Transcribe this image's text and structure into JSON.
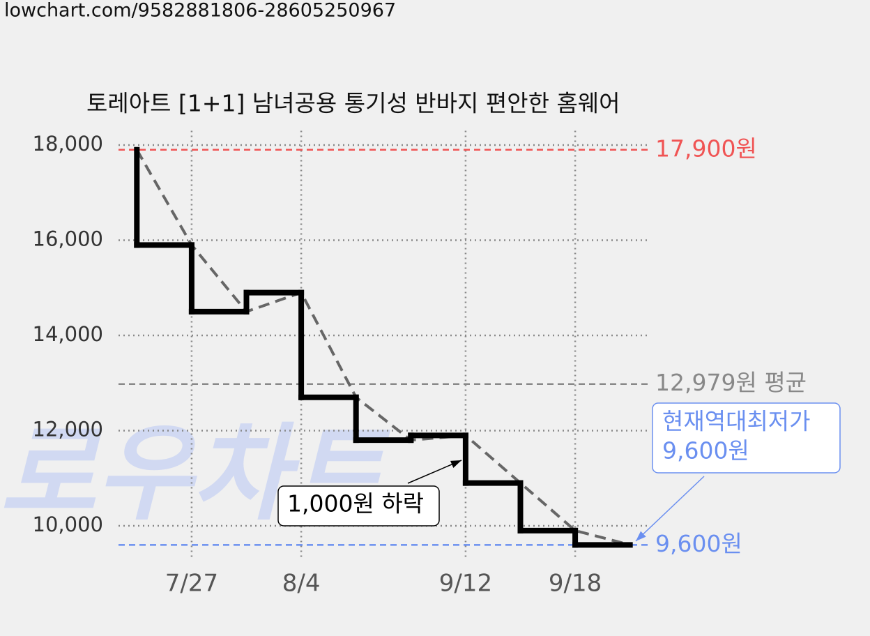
{
  "url": "lowchart.com/9582881806-28605250967",
  "chart_data": {
    "type": "step",
    "title": "토레아트 [1+1] 남녀공용 통기성 반바지 편안한 홈웨어",
    "categories": [
      null,
      "7/27",
      null,
      "8/4",
      null,
      null,
      "9/12",
      null,
      "9/18",
      null
    ],
    "values": [
      17900,
      15900,
      14500,
      14900,
      12700,
      11800,
      11900,
      10900,
      9900,
      9600
    ],
    "color": "#000000",
    "trend_color": "#666666",
    "ylim": [
      9300,
      18300
    ],
    "yticks": [
      {
        "value": 10000,
        "label": "10,000"
      },
      {
        "value": 12000,
        "label": "12,000"
      },
      {
        "value": 14000,
        "label": "14,000"
      },
      {
        "value": 16000,
        "label": "16,000"
      },
      {
        "value": 18000,
        "label": "18,000"
      }
    ],
    "grid": true,
    "reference_lines": [
      {
        "value": 17900,
        "label": "17,900원",
        "color": "#f05454"
      },
      {
        "value": 12979,
        "label": "12,979원 평균",
        "color": "#888888"
      },
      {
        "value": 9600,
        "label": "9,600원",
        "color": "#6a8ff0"
      }
    ],
    "annotations": [
      {
        "lines": [
          "현재역대최저가",
          "9,600원"
        ],
        "color": "#6a8ff0"
      },
      {
        "lines": [
          "1,000원 하락"
        ],
        "color": "#000000"
      }
    ],
    "watermark": "로우차트"
  }
}
